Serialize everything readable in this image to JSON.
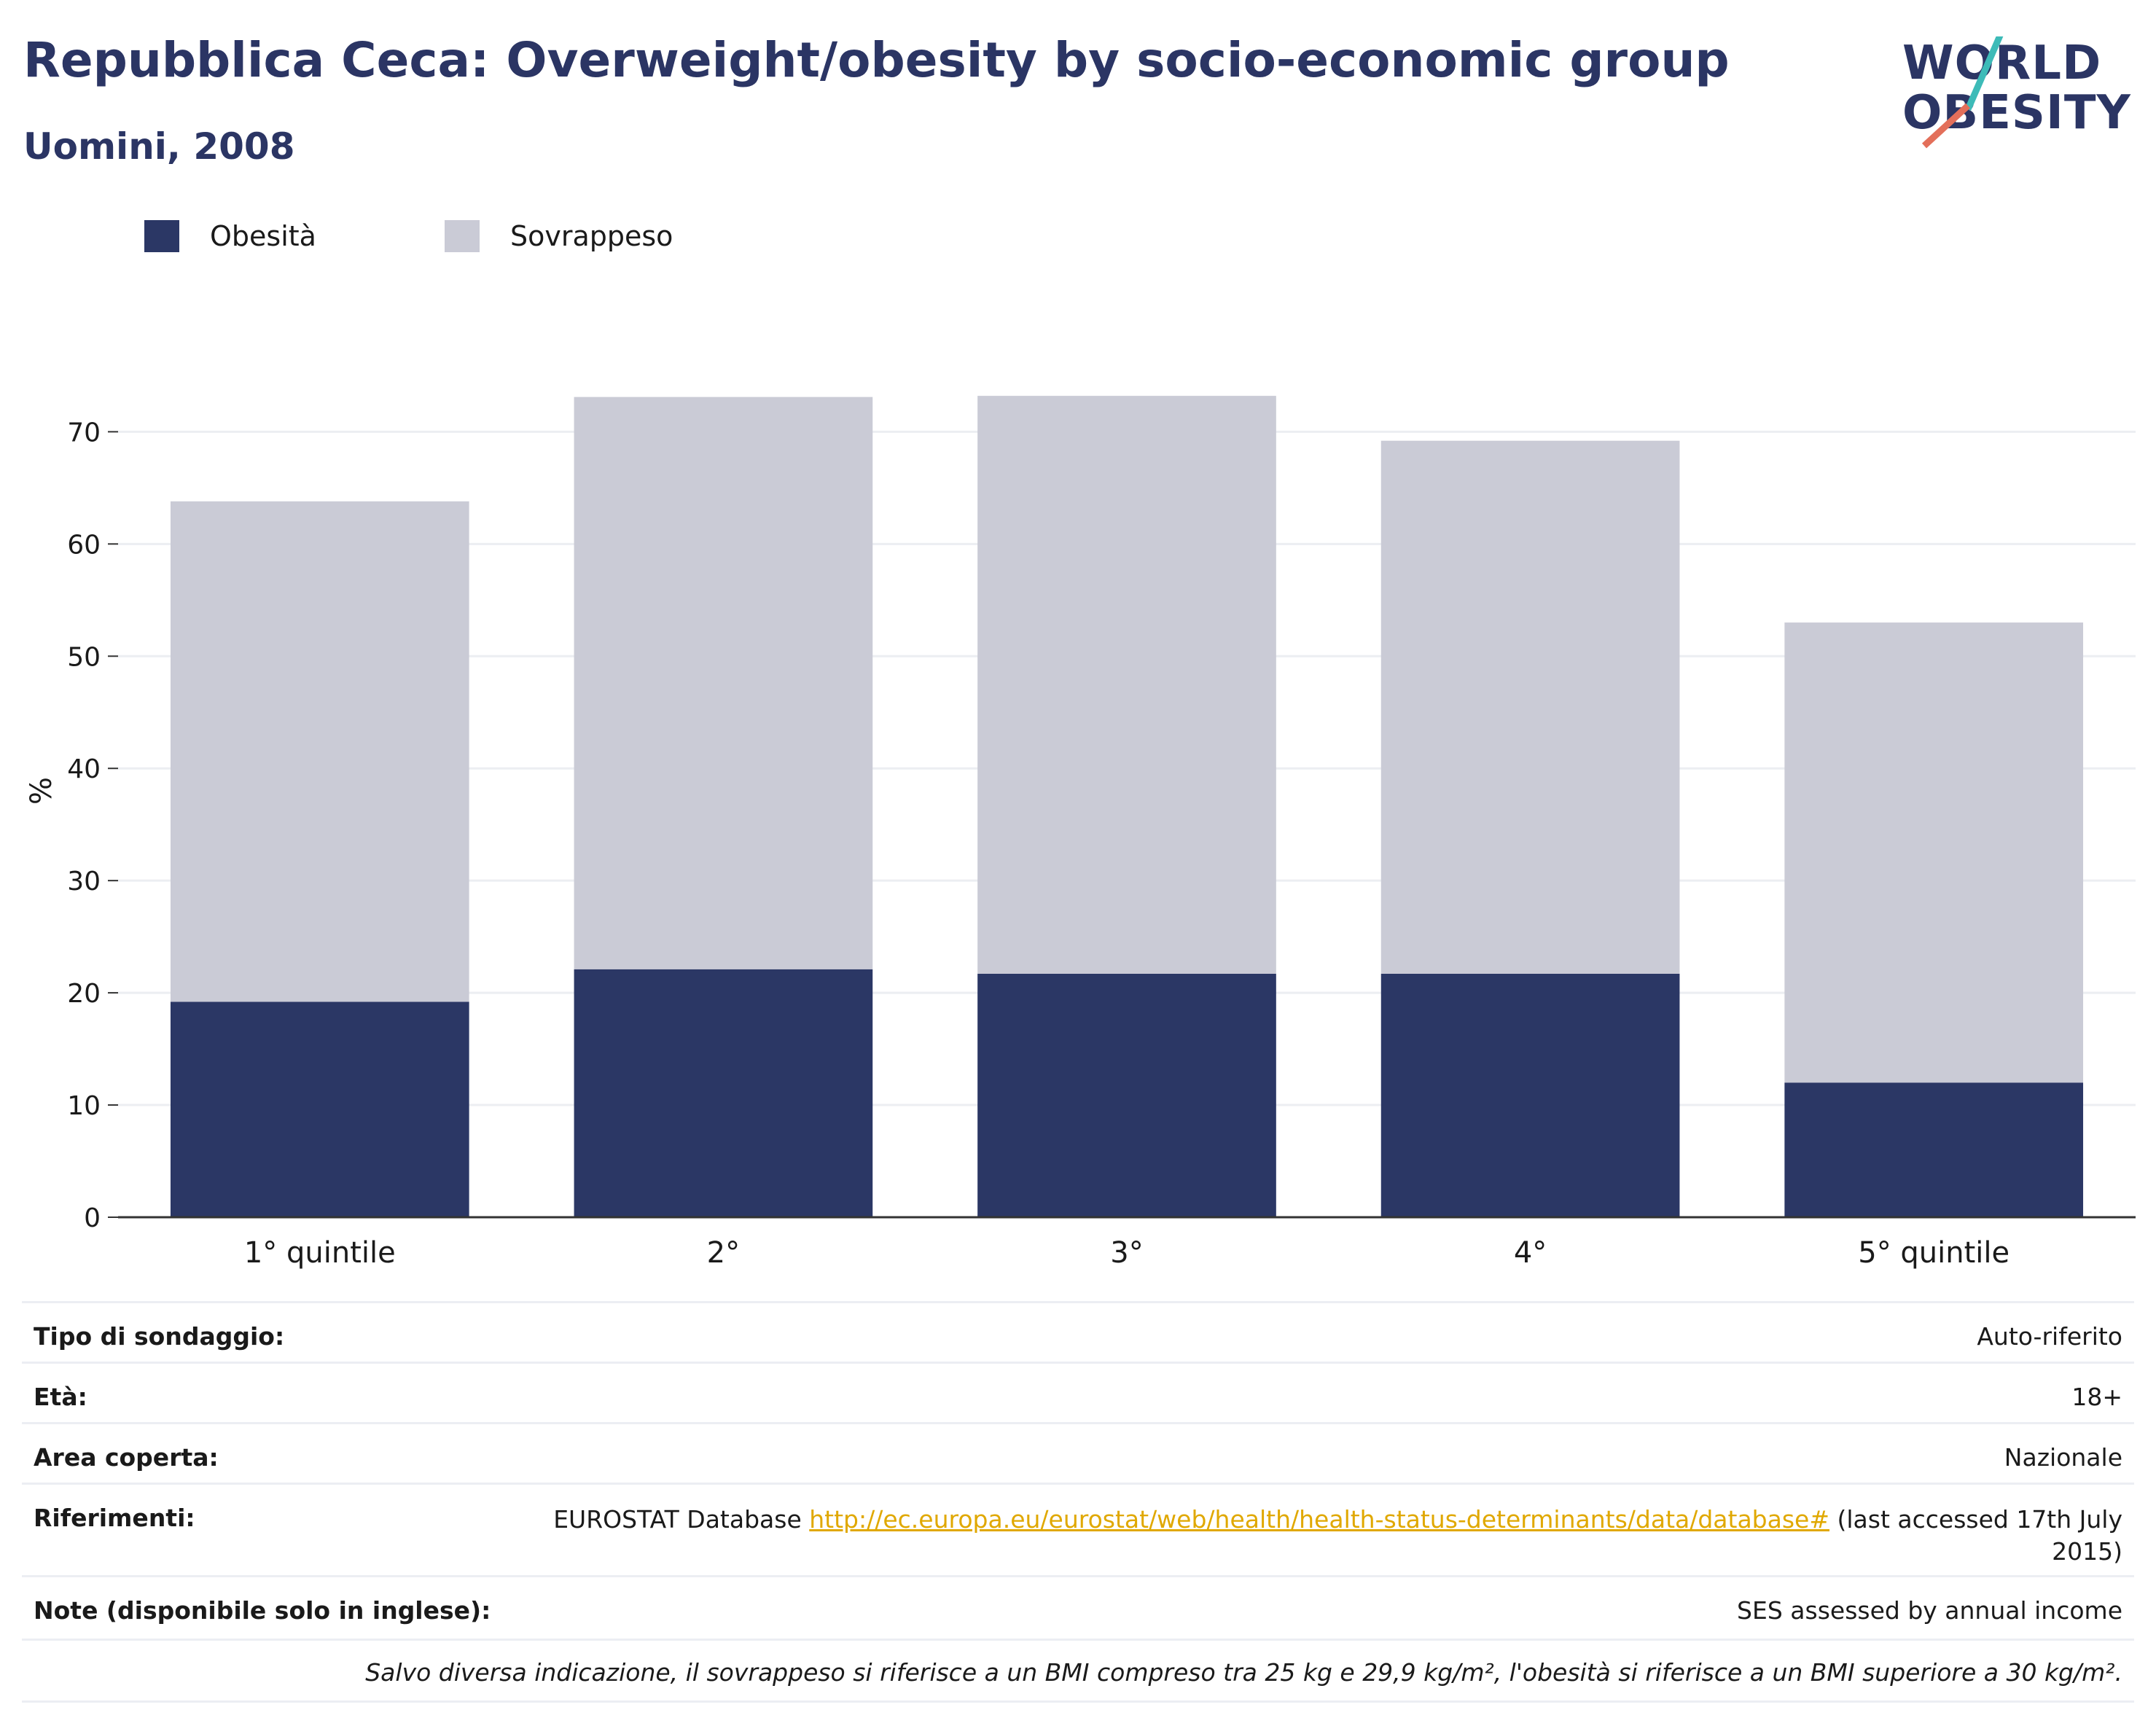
{
  "header": {
    "title": "Repubblica Ceca: Overweight/obesity by socio-economic group",
    "subtitle": "Uomini, 2008"
  },
  "logo": {
    "line1": "WORLD",
    "line2": "OBESITY",
    "slash_colors": [
      "#3dbbb8",
      "#e36f5a"
    ]
  },
  "colors": {
    "obesity": "#2b3765",
    "overweight": "#cacbd6",
    "grid": "#eceef2",
    "axis": "#333333"
  },
  "chart_data": {
    "type": "bar",
    "stacked": true,
    "categories": [
      "1° quintile",
      "2°",
      "3°",
      "4°",
      "5° quintile"
    ],
    "series": [
      {
        "name": "Obesità",
        "values": [
          19.2,
          22.1,
          21.7,
          21.7,
          12.0
        ]
      },
      {
        "name": "Sovrappeso",
        "values": [
          44.6,
          51.0,
          51.5,
          47.5,
          41.0
        ]
      }
    ],
    "totals": [
      63.8,
      73.1,
      73.2,
      69.2,
      53.0
    ],
    "ylabel": "%",
    "ylim": [
      0,
      76
    ],
    "yticks": [
      0,
      10,
      20,
      30,
      40,
      50,
      60,
      70
    ],
    "grid": true,
    "legend_position": "top-left"
  },
  "info": {
    "rows": [
      {
        "label": "Tipo di sondaggio:",
        "value": "Auto-riferito"
      },
      {
        "label": "Età:",
        "value": "18+"
      },
      {
        "label": "Area coperta:",
        "value": "Nazionale"
      },
      {
        "label": "Riferimenti:",
        "value_prefix": "EUROSTAT Database ",
        "link": "http://ec.europa.eu/eurostat/web/health/health-status-determinants/data/database#",
        "value_suffix": " (last accessed 17th July",
        "value_line2": "2015)"
      },
      {
        "label": "Note (disponibile solo in inglese):",
        "value": "SES assessed by annual income"
      }
    ],
    "footnote": "Salvo diversa indicazione, il sovrappeso si riferisce a un BMI compreso tra 25 kg e 29,9 kg/m², l'obesità si riferisce a un BMI superiore a 30 kg/m²."
  }
}
